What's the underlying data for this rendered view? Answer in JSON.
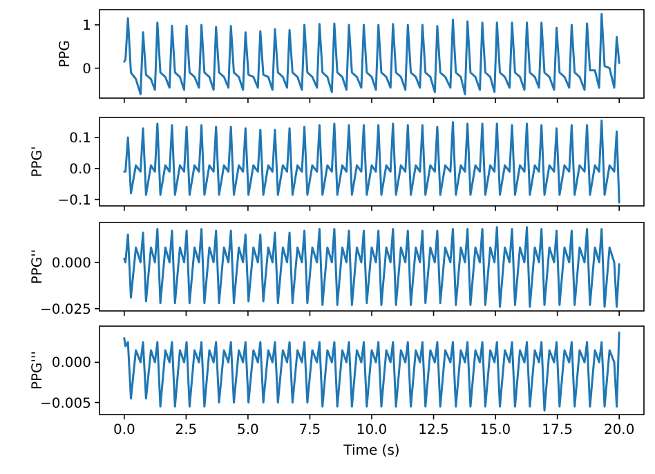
{
  "chart_data": [
    {
      "type": "line",
      "ylabel": "PPG",
      "tick_labels": "y",
      "xlim": [
        -1,
        21
      ],
      "xticks": [
        0,
        2.5,
        5,
        7.5,
        10,
        12.5,
        15,
        17.5,
        20
      ],
      "ylim": [
        -0.69,
        1.35
      ],
      "yticks": [
        0,
        1
      ],
      "x": [
        0,
        0.05,
        0.15,
        0.27,
        0.47,
        0.66,
        0.76,
        0.88,
        1.08,
        1.24,
        1.34,
        1.46,
        1.66,
        1.83,
        1.93,
        2.05,
        2.25,
        2.42,
        2.52,
        2.64,
        2.84,
        3.02,
        3.12,
        3.24,
        3.44,
        3.61,
        3.71,
        3.83,
        4.03,
        4.21,
        4.31,
        4.43,
        4.63,
        4.8,
        4.9,
        5.02,
        5.22,
        5.4,
        5.5,
        5.62,
        5.82,
        5.99,
        6.09,
        6.21,
        6.41,
        6.58,
        6.68,
        6.8,
        7,
        7.18,
        7.28,
        7.4,
        7.6,
        7.79,
        7.89,
        8.01,
        8.21,
        8.39,
        8.49,
        8.61,
        8.81,
        8.98,
        9.08,
        9.2,
        9.4,
        9.58,
        9.68,
        9.8,
        10,
        10.17,
        10.27,
        10.39,
        10.59,
        10.76,
        10.86,
        10.98,
        11.18,
        11.36,
        11.46,
        11.58,
        11.78,
        11.95,
        12.05,
        12.17,
        12.37,
        12.55,
        12.65,
        12.77,
        12.97,
        13.18,
        13.28,
        13.4,
        13.6,
        13.77,
        13.87,
        13.99,
        14.19,
        14.37,
        14.47,
        14.59,
        14.79,
        14.96,
        15.06,
        15.18,
        15.38,
        15.57,
        15.67,
        15.79,
        15.99,
        16.17,
        16.27,
        16.39,
        16.59,
        16.76,
        16.86,
        16.98,
        17.18,
        17.37,
        17.47,
        17.59,
        17.79,
        17.98,
        18.08,
        18.2,
        18.4,
        18.6,
        18.7,
        18.82,
        19.02,
        19.19,
        19.29,
        19.41,
        19.61,
        19.8,
        19.9,
        20
      ],
      "series": [
        {
          "color": "#1f77b4",
          "values": [
            0.15,
            0.2,
            1.15,
            -0.1,
            -0.25,
            -0.6,
            0.83,
            -0.15,
            -0.25,
            -0.5,
            1.05,
            -0.1,
            -0.2,
            -0.45,
            0.98,
            -0.1,
            -0.2,
            -0.5,
            0.98,
            -0.1,
            -0.2,
            -0.45,
            1.0,
            -0.1,
            -0.2,
            -0.5,
            0.95,
            -0.1,
            -0.2,
            -0.45,
            0.97,
            -0.1,
            -0.2,
            -0.5,
            0.83,
            -0.15,
            -0.2,
            -0.45,
            0.85,
            -0.15,
            -0.2,
            -0.5,
            0.9,
            -0.1,
            -0.2,
            -0.45,
            0.88,
            -0.1,
            -0.2,
            -0.5,
            1.0,
            -0.1,
            -0.2,
            -0.45,
            1.02,
            -0.1,
            -0.2,
            -0.55,
            1.03,
            -0.1,
            -0.2,
            -0.5,
            1.0,
            -0.1,
            -0.2,
            -0.45,
            1.0,
            -0.1,
            -0.2,
            -0.5,
            1.0,
            -0.1,
            -0.2,
            -0.45,
            1.02,
            -0.1,
            -0.2,
            -0.5,
            1.0,
            -0.1,
            -0.2,
            -0.45,
            1.0,
            -0.1,
            -0.2,
            -0.55,
            0.97,
            -0.1,
            -0.2,
            -0.45,
            1.12,
            -0.1,
            -0.2,
            -0.6,
            1.08,
            -0.1,
            -0.2,
            -0.5,
            1.05,
            -0.1,
            -0.2,
            -0.55,
            1.05,
            -0.1,
            -0.2,
            -0.45,
            1.05,
            -0.1,
            -0.2,
            -0.5,
            1.05,
            -0.1,
            -0.2,
            -0.45,
            1.05,
            -0.1,
            -0.2,
            -0.5,
            0.93,
            -0.1,
            -0.2,
            -0.45,
            1.0,
            -0.1,
            -0.2,
            -0.5,
            1.03,
            -0.05,
            -0.05,
            -0.45,
            1.25,
            0.05,
            0.0,
            -0.45,
            0.72,
            0.12
          ]
        }
      ]
    },
    {
      "type": "line",
      "ylabel": "PPG'",
      "tick_labels": "y",
      "xlim": [
        -1,
        21
      ],
      "xticks": [
        0,
        2.5,
        5,
        7.5,
        10,
        12.5,
        15,
        17.5,
        20
      ],
      "ylim": [
        -0.121,
        0.165
      ],
      "yticks": [
        {
          "value": -0.1,
          "label": "−0.1"
        },
        {
          "value": 0,
          "label": "0.0"
        },
        0.1
      ],
      "x": [
        0,
        0.05,
        0.15,
        0.27,
        0.47,
        0.66,
        0.76,
        0.88,
        1.08,
        1.24,
        1.34,
        1.46,
        1.66,
        1.83,
        1.93,
        2.05,
        2.25,
        2.42,
        2.52,
        2.64,
        2.84,
        3.02,
        3.12,
        3.24,
        3.44,
        3.61,
        3.71,
        3.83,
        4.03,
        4.21,
        4.31,
        4.43,
        4.63,
        4.8,
        4.9,
        5.02,
        5.22,
        5.4,
        5.5,
        5.62,
        5.82,
        5.99,
        6.09,
        6.21,
        6.41,
        6.58,
        6.68,
        6.8,
        7,
        7.18,
        7.28,
        7.4,
        7.6,
        7.79,
        7.89,
        8.01,
        8.21,
        8.39,
        8.49,
        8.61,
        8.81,
        8.98,
        9.08,
        9.2,
        9.4,
        9.58,
        9.68,
        9.8,
        10,
        10.17,
        10.27,
        10.39,
        10.59,
        10.76,
        10.86,
        10.98,
        11.18,
        11.36,
        11.46,
        11.58,
        11.78,
        11.95,
        12.05,
        12.17,
        12.37,
        12.55,
        12.65,
        12.77,
        12.97,
        13.18,
        13.28,
        13.4,
        13.6,
        13.77,
        13.87,
        13.99,
        14.19,
        14.37,
        14.47,
        14.59,
        14.79,
        14.96,
        15.06,
        15.18,
        15.38,
        15.57,
        15.67,
        15.79,
        15.99,
        16.17,
        16.27,
        16.39,
        16.59,
        16.76,
        16.86,
        16.98,
        17.18,
        17.37,
        17.47,
        17.59,
        17.79,
        17.98,
        18.08,
        18.2,
        18.4,
        18.6,
        18.7,
        18.82,
        19.02,
        19.19,
        19.29,
        19.41,
        19.61,
        19.8,
        19.9,
        20
      ],
      "series": [
        {
          "color": "#1f77b4",
          "values": [
            -0.01,
            -0.01,
            0.1,
            -0.08,
            0.01,
            -0.01,
            0.13,
            -0.085,
            0.01,
            -0.01,
            0.145,
            -0.085,
            0.01,
            -0.01,
            0.14,
            -0.085,
            0.01,
            -0.01,
            0.135,
            -0.085,
            0.01,
            -0.01,
            0.14,
            -0.085,
            0.01,
            -0.01,
            0.135,
            -0.085,
            0.01,
            -0.01,
            0.135,
            -0.085,
            0.01,
            -0.01,
            0.13,
            -0.085,
            0.01,
            -0.01,
            0.125,
            -0.085,
            0.01,
            -0.01,
            0.125,
            -0.085,
            0.01,
            -0.01,
            0.13,
            -0.085,
            0.01,
            -0.01,
            0.135,
            -0.085,
            0.01,
            -0.01,
            0.14,
            -0.085,
            0.01,
            -0.01,
            0.145,
            -0.085,
            0.01,
            -0.01,
            0.14,
            -0.085,
            0.01,
            -0.01,
            0.14,
            -0.085,
            0.01,
            -0.01,
            0.14,
            -0.085,
            0.01,
            -0.01,
            0.145,
            -0.085,
            0.01,
            -0.01,
            0.14,
            -0.085,
            0.01,
            -0.01,
            0.14,
            -0.085,
            0.01,
            -0.01,
            0.135,
            -0.085,
            0.01,
            -0.01,
            0.15,
            -0.085,
            0.01,
            -0.01,
            0.145,
            -0.085,
            0.01,
            -0.01,
            0.145,
            -0.085,
            0.01,
            -0.01,
            0.145,
            -0.085,
            0.01,
            -0.01,
            0.14,
            -0.085,
            0.01,
            -0.01,
            0.145,
            -0.085,
            0.01,
            -0.01,
            0.14,
            -0.085,
            0.01,
            -0.01,
            0.13,
            -0.085,
            0.01,
            -0.01,
            0.14,
            -0.085,
            0.01,
            -0.01,
            0.14,
            -0.085,
            0.01,
            -0.01,
            0.155,
            -0.085,
            0.01,
            -0.01,
            0.12,
            -0.11
          ]
        }
      ]
    },
    {
      "type": "line",
      "ylabel": "PPG''",
      "tick_labels": "y",
      "xlim": [
        -1,
        21
      ],
      "xticks": [
        0,
        2.5,
        5,
        7.5,
        10,
        12.5,
        15,
        17.5,
        20
      ],
      "ylim": [
        -0.0262,
        0.0215
      ],
      "yticks": [
        {
          "value": -0.025,
          "label": "−0.025"
        },
        {
          "value": 0,
          "label": "0.000"
        }
      ],
      "x": [
        0,
        0.05,
        0.15,
        0.27,
        0.47,
        0.66,
        0.76,
        0.88,
        1.08,
        1.24,
        1.34,
        1.46,
        1.66,
        1.83,
        1.93,
        2.05,
        2.25,
        2.42,
        2.52,
        2.64,
        2.84,
        3.02,
        3.12,
        3.24,
        3.44,
        3.61,
        3.71,
        3.83,
        4.03,
        4.21,
        4.31,
        4.43,
        4.63,
        4.8,
        4.9,
        5.02,
        5.22,
        5.4,
        5.5,
        5.62,
        5.82,
        5.99,
        6.09,
        6.21,
        6.41,
        6.58,
        6.68,
        6.8,
        7,
        7.18,
        7.28,
        7.4,
        7.6,
        7.79,
        7.89,
        8.01,
        8.21,
        8.39,
        8.49,
        8.61,
        8.81,
        8.98,
        9.08,
        9.2,
        9.4,
        9.58,
        9.68,
        9.8,
        10,
        10.17,
        10.27,
        10.39,
        10.59,
        10.76,
        10.86,
        10.98,
        11.18,
        11.36,
        11.46,
        11.58,
        11.78,
        11.95,
        12.05,
        12.17,
        12.37,
        12.55,
        12.65,
        12.77,
        12.97,
        13.18,
        13.28,
        13.4,
        13.6,
        13.77,
        13.87,
        13.99,
        14.19,
        14.37,
        14.47,
        14.59,
        14.79,
        14.96,
        15.06,
        15.18,
        15.38,
        15.57,
        15.67,
        15.79,
        15.99,
        16.17,
        16.27,
        16.39,
        16.59,
        16.76,
        16.86,
        16.98,
        17.18,
        17.37,
        17.47,
        17.59,
        17.79,
        17.98,
        18.08,
        18.2,
        18.4,
        18.6,
        18.7,
        18.82,
        19.02,
        19.19,
        19.29,
        19.41,
        19.61,
        19.8,
        19.9,
        20
      ],
      "series": [
        {
          "color": "#1f77b4",
          "values": [
            0.002,
            0.0,
            0.015,
            -0.019,
            0.008,
            0.0,
            0.016,
            -0.021,
            0.008,
            0.0,
            0.018,
            -0.022,
            0.008,
            0.0,
            0.017,
            -0.022,
            0.008,
            0.0,
            0.017,
            -0.022,
            0.008,
            0.0,
            0.018,
            -0.022,
            0.008,
            0.0,
            0.017,
            -0.022,
            0.008,
            0.0,
            0.017,
            -0.022,
            0.008,
            0.0,
            0.015,
            -0.021,
            0.008,
            0.0,
            0.015,
            -0.021,
            0.008,
            0.0,
            0.016,
            -0.022,
            0.008,
            0.0,
            0.016,
            -0.022,
            0.008,
            0.0,
            0.017,
            -0.022,
            0.008,
            0.0,
            0.018,
            -0.023,
            0.008,
            0.0,
            0.018,
            -0.023,
            0.008,
            0.0,
            0.017,
            -0.023,
            0.008,
            0.0,
            0.017,
            -0.022,
            0.008,
            0.0,
            0.017,
            -0.023,
            0.008,
            0.0,
            0.018,
            -0.023,
            0.008,
            0.0,
            0.017,
            -0.023,
            0.008,
            0.0,
            0.017,
            -0.022,
            0.008,
            0.0,
            0.017,
            -0.022,
            0.008,
            0.0,
            0.018,
            -0.023,
            0.008,
            0.0,
            0.018,
            -0.023,
            0.008,
            0.0,
            0.018,
            -0.023,
            0.008,
            0.0,
            0.019,
            -0.024,
            0.008,
            0.0,
            0.018,
            -0.023,
            0.008,
            0.0,
            0.019,
            -0.024,
            0.008,
            0.0,
            0.018,
            -0.023,
            0.008,
            0.0,
            0.017,
            -0.023,
            0.008,
            0.0,
            0.017,
            -0.023,
            0.008,
            0.0,
            0.018,
            -0.023,
            0.008,
            0.0,
            0.018,
            -0.024,
            0.008,
            0.0,
            -0.024,
            -0.001
          ]
        }
      ]
    },
    {
      "type": "line",
      "ylabel": "PPG'''",
      "xlabel": "Time (s)",
      "xlim": [
        -1,
        21
      ],
      "xticks": [
        {
          "value": 0,
          "label": "0.0"
        },
        2.5,
        {
          "value": 5,
          "label": "5.0"
        },
        7.5,
        {
          "value": 10,
          "label": "10.0"
        },
        12.5,
        {
          "value": 15,
          "label": "15.0"
        },
        17.5,
        {
          "value": 20,
          "label": "20.0"
        }
      ],
      "ylim": [
        -0.0065,
        0.0045
      ],
      "yticks": [
        {
          "value": -0.005,
          "label": "−0.005"
        },
        {
          "value": 0,
          "label": "0.000"
        }
      ],
      "x": [
        0,
        0.05,
        0.15,
        0.27,
        0.47,
        0.66,
        0.76,
        0.88,
        1.08,
        1.24,
        1.34,
        1.46,
        1.66,
        1.83,
        1.93,
        2.05,
        2.25,
        2.42,
        2.52,
        2.64,
        2.84,
        3.02,
        3.12,
        3.24,
        3.44,
        3.61,
        3.71,
        3.83,
        4.03,
        4.21,
        4.31,
        4.43,
        4.63,
        4.8,
        4.9,
        5.02,
        5.22,
        5.4,
        5.5,
        5.62,
        5.82,
        5.99,
        6.09,
        6.21,
        6.41,
        6.58,
        6.68,
        6.8,
        7,
        7.18,
        7.28,
        7.4,
        7.6,
        7.79,
        7.89,
        8.01,
        8.21,
        8.39,
        8.49,
        8.61,
        8.81,
        8.98,
        9.08,
        9.2,
        9.4,
        9.58,
        9.68,
        9.8,
        10,
        10.17,
        10.27,
        10.39,
        10.59,
        10.76,
        10.86,
        10.98,
        11.18,
        11.36,
        11.46,
        11.58,
        11.78,
        11.95,
        12.05,
        12.17,
        12.37,
        12.55,
        12.65,
        12.77,
        12.97,
        13.18,
        13.28,
        13.4,
        13.6,
        13.77,
        13.87,
        13.99,
        14.19,
        14.37,
        14.47,
        14.59,
        14.79,
        14.96,
        15.06,
        15.18,
        15.38,
        15.57,
        15.67,
        15.79,
        15.99,
        16.17,
        16.27,
        16.39,
        16.59,
        16.76,
        16.86,
        16.98,
        17.18,
        17.37,
        17.47,
        17.59,
        17.79,
        17.98,
        18.08,
        18.2,
        18.4,
        18.6,
        18.7,
        18.82,
        19.02,
        19.19,
        19.29,
        19.41,
        19.61,
        19.8,
        19.9,
        20
      ],
      "series": [
        {
          "color": "#1f77b4",
          "values": [
            0.003,
            0.002,
            0.0025,
            -0.0045,
            0.0015,
            0.0,
            0.0025,
            -0.0045,
            0.0015,
            0.0,
            0.0025,
            -0.0055,
            0.0015,
            0.0,
            0.0025,
            -0.0055,
            0.0015,
            0.0,
            0.0025,
            -0.0055,
            0.0015,
            0.0,
            0.0025,
            -0.0055,
            0.0015,
            0.0,
            0.0025,
            -0.005,
            0.0015,
            0.0,
            0.0025,
            -0.005,
            0.0015,
            0.0,
            0.0025,
            -0.005,
            0.0015,
            0.0,
            0.0025,
            -0.005,
            0.0015,
            0.0,
            0.0025,
            -0.005,
            0.0015,
            0.0,
            0.0025,
            -0.005,
            0.0015,
            0.0,
            0.0025,
            -0.005,
            0.0015,
            0.0,
            0.0025,
            -0.0055,
            0.0015,
            0.0,
            0.0025,
            -0.0055,
            0.0015,
            0.0,
            0.0025,
            -0.0055,
            0.0015,
            0.0,
            0.0025,
            -0.0055,
            0.0015,
            0.0,
            0.0025,
            -0.0055,
            0.0015,
            0.0,
            0.0025,
            -0.0055,
            0.0015,
            0.0,
            0.0025,
            -0.0055,
            0.0015,
            0.0,
            0.0025,
            -0.0055,
            0.0015,
            0.0,
            0.0025,
            -0.0055,
            0.0015,
            0.0,
            0.0025,
            -0.0055,
            0.0015,
            0.0,
            0.0025,
            -0.0055,
            0.0015,
            0.0,
            0.0025,
            -0.0055,
            0.0015,
            0.0,
            0.0025,
            -0.0055,
            0.0015,
            0.0,
            0.0025,
            -0.0055,
            0.0015,
            0.0,
            0.0025,
            -0.0055,
            0.0015,
            0.0,
            0.0025,
            -0.006,
            0.0015,
            0.0,
            0.0025,
            -0.0055,
            0.0015,
            0.0,
            0.0025,
            -0.0055,
            0.0015,
            0.0,
            0.0025,
            -0.0055,
            0.0015,
            0.0,
            0.0025,
            -0.0055,
            0.0015,
            0.0,
            -0.0055,
            0.0037
          ]
        }
      ]
    }
  ]
}
